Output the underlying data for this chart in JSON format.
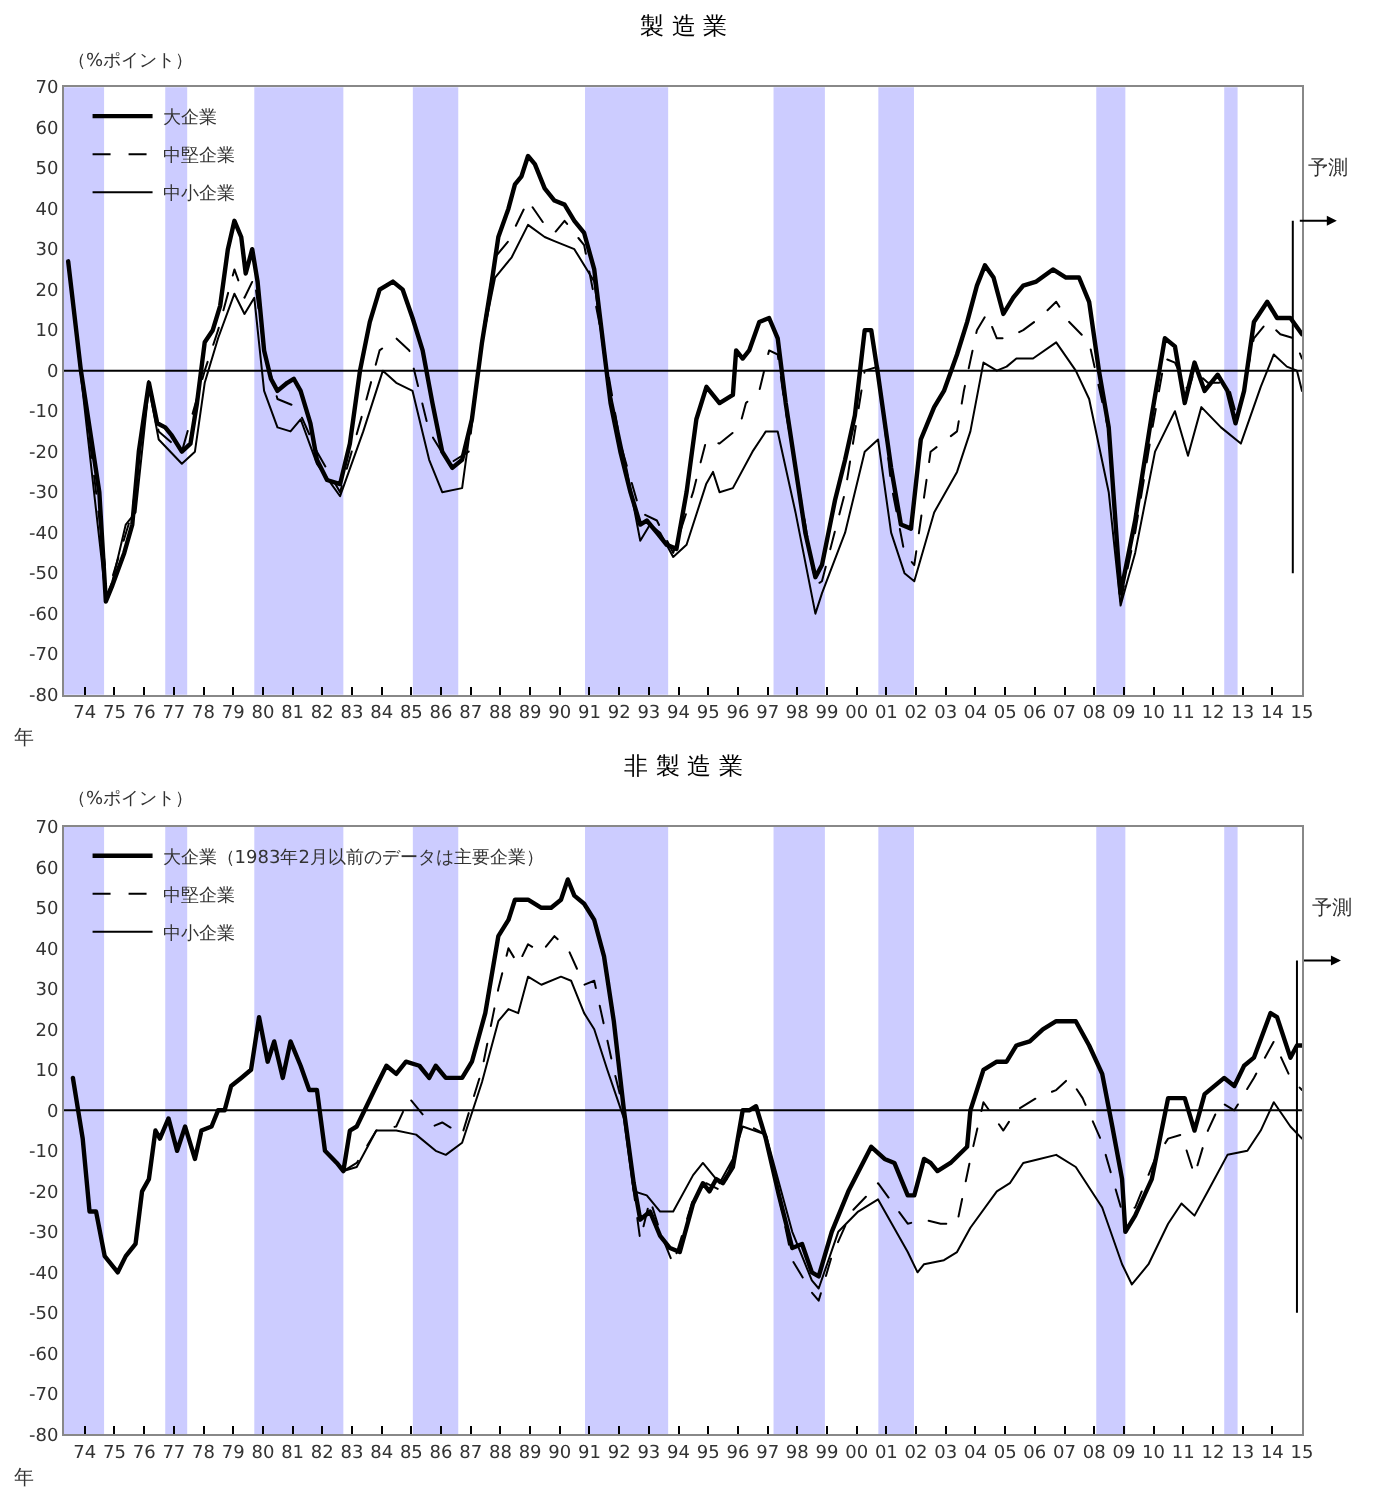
{
  "chart_data": [
    {
      "type": "line",
      "title": "製 造 業",
      "ylabel": "（%ポイント）",
      "xlabel": "年",
      "legend": "top left",
      "grid": false,
      "xlim": [
        1973.3,
        2015.0
      ],
      "ylim": [
        -80,
        70
      ],
      "yticks": [
        -80,
        -70,
        -60,
        -50,
        -40,
        -30,
        -20,
        -10,
        0,
        10,
        20,
        30,
        40,
        50,
        60,
        70
      ],
      "xticks": [
        {
          "value": 1974,
          "label": "74"
        },
        {
          "value": 1975,
          "label": "75"
        },
        {
          "value": 1976,
          "label": "76"
        },
        {
          "value": 1977,
          "label": "77"
        },
        {
          "value": 1978,
          "label": "78"
        },
        {
          "value": 1979,
          "label": "79"
        },
        {
          "value": 1980,
          "label": "80"
        },
        {
          "value": 1981,
          "label": "81"
        },
        {
          "value": 1982,
          "label": "82"
        },
        {
          "value": 1983,
          "label": "83"
        },
        {
          "value": 1984,
          "label": "84"
        },
        {
          "value": 1985,
          "label": "85"
        },
        {
          "value": 1986,
          "label": "86"
        },
        {
          "value": 1987,
          "label": "87"
        },
        {
          "value": 1988,
          "label": "88"
        },
        {
          "value": 1989,
          "label": "89"
        },
        {
          "value": 1990,
          "label": "90"
        },
        {
          "value": 1991,
          "label": "91"
        },
        {
          "value": 1992,
          "label": "92"
        },
        {
          "value": 1993,
          "label": "93"
        },
        {
          "value": 1994,
          "label": "94"
        },
        {
          "value": 1995,
          "label": "95"
        },
        {
          "value": 1996,
          "label": "96"
        },
        {
          "value": 1997,
          "label": "97"
        },
        {
          "value": 1998,
          "label": "98"
        },
        {
          "value": 1999,
          "label": "99"
        },
        {
          "value": 2000,
          "label": "00"
        },
        {
          "value": 2001,
          "label": "01"
        },
        {
          "value": 2002,
          "label": "02"
        },
        {
          "value": 2003,
          "label": "03"
        },
        {
          "value": 2004,
          "label": "04"
        },
        {
          "value": 2005,
          "label": "05"
        },
        {
          "value": 2006,
          "label": "06"
        },
        {
          "value": 2007,
          "label": "07"
        },
        {
          "value": 2008,
          "label": "08"
        },
        {
          "value": 2009,
          "label": "09"
        },
        {
          "value": 2010,
          "label": "10"
        },
        {
          "value": 2011,
          "label": "11"
        },
        {
          "value": 2012,
          "label": "12"
        },
        {
          "value": 2013,
          "label": "13"
        },
        {
          "value": 2014,
          "label": "14"
        },
        {
          "value": 2015,
          "label": "15"
        }
      ],
      "bands": [
        {
          "axis": "x",
          "from": 1973.3,
          "to": 1974.65,
          "color": "#ccccff"
        },
        {
          "axis": "x",
          "from": 1976.71,
          "to": 1977.45,
          "color": "#ccccff"
        },
        {
          "axis": "x",
          "from": 1979.71,
          "to": 1982.71,
          "color": "#ccccff"
        },
        {
          "axis": "x",
          "from": 1985.05,
          "to": 1986.58,
          "color": "#ccccff"
        },
        {
          "axis": "x",
          "from": 1990.85,
          "to": 1993.65,
          "color": "#ccccff"
        },
        {
          "axis": "x",
          "from": 1997.2,
          "to": 1998.93,
          "color": "#ccccff"
        },
        {
          "axis": "x",
          "from": 2000.73,
          "to": 2001.93,
          "color": "#ccccff"
        },
        {
          "axis": "x",
          "from": 2008.07,
          "to": 2009.05,
          "color": "#ccccff"
        },
        {
          "axis": "x",
          "from": 2012.38,
          "to": 2012.83,
          "color": "#ccccff"
        }
      ],
      "ref_lines": [
        {
          "axis": "y",
          "value": 0,
          "color": "#000000"
        },
        {
          "axis": "x",
          "value": 2014.69,
          "label": "予測",
          "color": "#000000"
        }
      ],
      "series": [
        {
          "name": "大企業",
          "color": "#000000",
          "line_style": "solid",
          "x": [
            1973.44,
            1973.87,
            1974.49,
            1974.71,
            1974.93,
            1975.33,
            1975.6,
            1975.82,
            1976.16,
            1976.44,
            1976.71,
            1976.93,
            1977.27,
            1977.56,
            1977.78,
            1978.04,
            1978.31,
            1978.56,
            1978.82,
            1979.04,
            1979.27,
            1979.42,
            1979.64,
            1979.82,
            1980.04,
            1980.27,
            1980.49,
            1980.82,
            1981.04,
            1981.27,
            1981.6,
            1981.82,
            1982.16,
            1982.6,
            1982.93,
            1983.27,
            1983.6,
            1983.93,
            1984.38,
            1984.71,
            1985.04,
            1985.38,
            1985.71,
            1986.04,
            1986.38,
            1986.71,
            1987.04,
            1987.38,
            1987.71,
            1987.93,
            1988.27,
            1988.49,
            1988.71,
            1988.93,
            1989.16,
            1989.49,
            1989.82,
            1990.16,
            1990.49,
            1990.82,
            1991.16,
            1991.49,
            1991.71,
            1992.04,
            1992.38,
            1992.71,
            1992.93,
            1993.27,
            1993.6,
            1993.93,
            1994.27,
            1994.6,
            1994.94,
            1995.38,
            1995.83,
            1995.94,
            1996.16,
            1996.38,
            1996.72,
            1997.05,
            1997.34,
            1997.61,
            1997.94,
            1998.27,
            1998.61,
            1998.83,
            1999.27,
            1999.61,
            1999.94,
            2000.27,
            2000.49,
            2000.72,
            2001.16,
            2001.49,
            2001.83,
            2002.16,
            2002.61,
            2002.94,
            2003.38,
            2003.72,
            2004.05,
            2004.32,
            2004.61,
            2004.94,
            2005.27,
            2005.61,
            2006.05,
            2006.61,
            2007.05,
            2007.49,
            2007.83,
            2008.16,
            2008.49,
            2008.89,
            2009.38,
            2009.94,
            2010.38,
            2010.72,
            2011.05,
            2011.38,
            2011.72,
            2012.16,
            2012.49,
            2012.76,
            2013.05,
            2013.38,
            2013.83,
            2014.16,
            2014.61,
            2015.0
          ],
          "values": [
            27,
            0,
            -30,
            -57,
            -53,
            -45,
            -38,
            -20,
            -3,
            -13,
            -14,
            -16,
            -20,
            -18,
            -8,
            7,
            10,
            16,
            30,
            37,
            33,
            24,
            30,
            22,
            5,
            -2,
            -5,
            -3,
            -2,
            -5,
            -13,
            -22,
            -27,
            -28,
            -18,
            0,
            12,
            20,
            22,
            20,
            13,
            5,
            -8,
            -20,
            -24,
            -22,
            -12,
            7,
            22,
            33,
            40,
            46,
            48,
            53,
            51,
            45,
            42,
            41,
            37,
            34,
            25,
            5,
            -8,
            -20,
            -30,
            -38,
            -37,
            -40,
            -43,
            -44,
            -30,
            -12,
            -4,
            -8,
            -6,
            5,
            3,
            5,
            12,
            13,
            8,
            -8,
            -24,
            -40,
            -51,
            -48,
            -32,
            -22,
            -11,
            10,
            10,
            -1,
            -24,
            -38,
            -39,
            -17,
            -9,
            -5,
            4,
            12,
            21,
            26,
            23,
            14,
            18,
            21,
            22,
            25,
            23,
            23,
            17,
            0,
            -14,
            -55,
            -37,
            -11,
            8,
            6,
            -8,
            2,
            -5,
            -1,
            -5,
            -13,
            -5,
            12,
            17,
            13,
            13,
            9
          ]
        },
        {
          "name": "中堅企業",
          "color": "#000000",
          "line_style": "dashed",
          "x": [
            1973.44,
            1974.71,
            1974.93,
            1975.6,
            1976.16,
            1976.49,
            1977.27,
            1978.04,
            1978.49,
            1979.04,
            1979.38,
            1979.71,
            1980.04,
            1980.49,
            1981.16,
            1981.82,
            1982.6,
            1983.38,
            1983.93,
            1984.49,
            1984.93,
            1985.6,
            1986.27,
            1986.93,
            1987.38,
            1987.82,
            1988.27,
            1988.93,
            1989.49,
            1989.82,
            1990.16,
            1990.82,
            1991.38,
            1992.04,
            1992.71,
            1993.27,
            1993.82,
            1994.49,
            1994.94,
            1995.38,
            1996.05,
            1996.27,
            1996.72,
            1997.05,
            1997.34,
            1997.61,
            1998.27,
            1998.61,
            1998.83,
            1999.61,
            2000.27,
            2000.72,
            2001.16,
            2001.61,
            2001.94,
            2002.49,
            2003.38,
            2003.61,
            2004.05,
            2004.38,
            2004.72,
            2005.05,
            2005.61,
            2006.16,
            2006.72,
            2007.16,
            2007.83,
            2008.49,
            2008.89,
            2009.38,
            2009.94,
            2010.38,
            2010.72,
            2011.16,
            2011.38,
            2011.83,
            2012.49,
            2012.83,
            2013.38,
            2013.83,
            2014.27,
            2014.72,
            2015.0
          ],
          "values": [
            27,
            -50,
            -51,
            -35,
            -2,
            -15,
            -20,
            0,
            10,
            25,
            18,
            23,
            5,
            -7,
            -9,
            -20,
            -30,
            -10,
            5,
            8,
            5,
            -15,
            -23,
            -20,
            8,
            28,
            32,
            42,
            36,
            34,
            37,
            31,
            10,
            -18,
            -35,
            -37,
            -45,
            -30,
            -17,
            -18,
            -14,
            -8,
            -5,
            5,
            4,
            -10,
            -38,
            -53,
            -52,
            -30,
            0,
            1,
            -28,
            -45,
            -48,
            -20,
            -15,
            -5,
            10,
            14,
            8,
            8,
            10,
            13,
            17,
            12,
            7,
            -15,
            -57,
            -40,
            -15,
            3,
            2,
            -5,
            0,
            -3,
            -3,
            -12,
            8,
            12,
            9,
            8,
            3
          ]
        },
        {
          "name": "中小企業",
          "color": "#000000",
          "line_style": "solid",
          "x": [
            1973.44,
            1974.71,
            1974.93,
            1975.38,
            1975.71,
            1976.16,
            1976.49,
            1977.27,
            1977.71,
            1978.04,
            1978.49,
            1979.04,
            1979.38,
            1979.71,
            1980.04,
            1980.49,
            1980.93,
            1981.27,
            1981.82,
            1982.6,
            1983.38,
            1984.04,
            1984.49,
            1985.04,
            1985.6,
            1986.04,
            1986.71,
            1987.38,
            1987.82,
            1988.38,
            1988.93,
            1989.49,
            1989.82,
            1990.49,
            1991.16,
            1991.6,
            1992.27,
            1992.71,
            1993.04,
            1993.38,
            1993.82,
            1994.27,
            1994.93,
            1995.16,
            1995.38,
            1995.83,
            1996.49,
            1996.94,
            1997.34,
            1997.94,
            1998.61,
            1998.83,
            1999.61,
            2000.27,
            2000.72,
            2001.16,
            2001.61,
            2001.94,
            2002.61,
            2003.38,
            2003.83,
            2004.27,
            2004.72,
            2005.05,
            2005.38,
            2005.94,
            2006.72,
            2007.38,
            2007.83,
            2008.49,
            2008.89,
            2009.38,
            2010.05,
            2010.72,
            2011.16,
            2011.61,
            2012.27,
            2012.94,
            2013.61,
            2014.05,
            2014.49,
            2014.83,
            2015.0
          ],
          "values": [
            27,
            -56,
            -52,
            -38,
            -35,
            -4,
            -17,
            -23,
            -20,
            -3,
            8,
            19,
            14,
            18,
            -5,
            -14,
            -15,
            -12,
            -23,
            -31,
            -15,
            0,
            -3,
            -5,
            -22,
            -30,
            -29,
            7,
            23,
            28,
            36,
            33,
            32,
            30,
            22,
            -2,
            -25,
            -42,
            -38,
            -40,
            -46,
            -43,
            -28,
            -25,
            -30,
            -29,
            -20,
            -15,
            -15,
            -35,
            -60,
            -55,
            -40,
            -20,
            -17,
            -40,
            -50,
            -52,
            -35,
            -25,
            -15,
            2,
            0,
            1,
            3,
            3,
            7,
            0,
            -7,
            -30,
            -58,
            -45,
            -20,
            -10,
            -21,
            -9,
            -14,
            -18,
            -4,
            4,
            1,
            0,
            -5
          ]
        }
      ]
    },
    {
      "type": "line",
      "title": "非 製 造 業",
      "ylabel": "（%ポイント）",
      "xlabel": "年",
      "legend": "top left",
      "grid": false,
      "xlim": [
        1973.3,
        2015.0
      ],
      "ylim": [
        -80,
        70
      ],
      "yticks": [
        -80,
        -70,
        -60,
        -50,
        -40,
        -30,
        -20,
        -10,
        0,
        10,
        20,
        30,
        40,
        50,
        60,
        70
      ],
      "xticks": [
        {
          "value": 1974,
          "label": "74"
        },
        {
          "value": 1975,
          "label": "75"
        },
        {
          "value": 1976,
          "label": "76"
        },
        {
          "value": 1977,
          "label": "77"
        },
        {
          "value": 1978,
          "label": "78"
        },
        {
          "value": 1979,
          "label": "79"
        },
        {
          "value": 1980,
          "label": "80"
        },
        {
          "value": 1981,
          "label": "81"
        },
        {
          "value": 1982,
          "label": "82"
        },
        {
          "value": 1983,
          "label": "83"
        },
        {
          "value": 1984,
          "label": "84"
        },
        {
          "value": 1985,
          "label": "85"
        },
        {
          "value": 1986,
          "label": "86"
        },
        {
          "value": 1987,
          "label": "87"
        },
        {
          "value": 1988,
          "label": "88"
        },
        {
          "value": 1989,
          "label": "89"
        },
        {
          "value": 1990,
          "label": "90"
        },
        {
          "value": 1991,
          "label": "91"
        },
        {
          "value": 1992,
          "label": "92"
        },
        {
          "value": 1993,
          "label": "93"
        },
        {
          "value": 1994,
          "label": "94"
        },
        {
          "value": 1995,
          "label": "95"
        },
        {
          "value": 1996,
          "label": "96"
        },
        {
          "value": 1997,
          "label": "97"
        },
        {
          "value": 1998,
          "label": "98"
        },
        {
          "value": 1999,
          "label": "99"
        },
        {
          "value": 2000,
          "label": "00"
        },
        {
          "value": 2001,
          "label": "01"
        },
        {
          "value": 2002,
          "label": "02"
        },
        {
          "value": 2003,
          "label": "03"
        },
        {
          "value": 2004,
          "label": "04"
        },
        {
          "value": 2005,
          "label": "05"
        },
        {
          "value": 2006,
          "label": "06"
        },
        {
          "value": 2007,
          "label": "07"
        },
        {
          "value": 2008,
          "label": "08"
        },
        {
          "value": 2009,
          "label": "09"
        },
        {
          "value": 2010,
          "label": "10"
        },
        {
          "value": 2011,
          "label": "11"
        },
        {
          "value": 2012,
          "label": "12"
        },
        {
          "value": 2013,
          "label": "13"
        },
        {
          "value": 2014,
          "label": "14"
        },
        {
          "value": 2015,
          "label": "15"
        }
      ],
      "bands": [
        {
          "axis": "x",
          "from": 1973.3,
          "to": 1974.65,
          "color": "#ccccff"
        },
        {
          "axis": "x",
          "from": 1976.71,
          "to": 1977.45,
          "color": "#ccccff"
        },
        {
          "axis": "x",
          "from": 1979.71,
          "to": 1982.71,
          "color": "#ccccff"
        },
        {
          "axis": "x",
          "from": 1985.05,
          "to": 1986.58,
          "color": "#ccccff"
        },
        {
          "axis": "x",
          "from": 1990.85,
          "to": 1993.65,
          "color": "#ccccff"
        },
        {
          "axis": "x",
          "from": 1997.2,
          "to": 1998.93,
          "color": "#ccccff"
        },
        {
          "axis": "x",
          "from": 2000.73,
          "to": 2001.93,
          "color": "#ccccff"
        },
        {
          "axis": "x",
          "from": 2008.07,
          "to": 2009.05,
          "color": "#ccccff"
        },
        {
          "axis": "x",
          "from": 2012.38,
          "to": 2012.83,
          "color": "#ccccff"
        }
      ],
      "ref_lines": [
        {
          "axis": "y",
          "value": 0,
          "color": "#000000"
        },
        {
          "axis": "x",
          "value": 2014.83,
          "label": "予測",
          "color": "#000000"
        }
      ],
      "series": [
        {
          "name": "大企業（1983年2月以前のデータは主要企業）",
          "color": "#000000",
          "line_style": "solid",
          "x": [
            1973.6,
            1973.93,
            1974.16,
            1974.38,
            1974.67,
            1975.11,
            1975.38,
            1975.71,
            1975.93,
            1976.16,
            1976.38,
            1976.53,
            1976.82,
            1977.11,
            1977.38,
            1977.71,
            1977.93,
            1978.27,
            1978.49,
            1978.71,
            1978.93,
            1979.27,
            1979.6,
            1979.87,
            1980.16,
            1980.38,
            1980.67,
            1980.93,
            1981.27,
            1981.56,
            1981.82,
            1982.09,
            1982.49,
            1982.71,
            1982.93,
            1983.16,
            1983.49,
            1983.82,
            1984.16,
            1984.49,
            1984.82,
            1985.27,
            1985.6,
            1985.82,
            1986.16,
            1986.71,
            1987.04,
            1987.49,
            1987.93,
            1988.27,
            1988.49,
            1988.93,
            1989.38,
            1989.71,
            1990.04,
            1990.27,
            1990.49,
            1990.82,
            1991.16,
            1991.49,
            1991.82,
            1992.16,
            1992.49,
            1992.71,
            1993.04,
            1993.38,
            1993.71,
            1994.04,
            1994.49,
            1994.82,
            1995.04,
            1995.27,
            1995.49,
            1995.83,
            1996.16,
            1996.38,
            1996.61,
            1996.94,
            1997.38,
            1997.83,
            1998.16,
            1998.49,
            1998.72,
            1999.16,
            1999.72,
            2000.49,
            2000.94,
            2001.27,
            2001.72,
            2001.94,
            2002.27,
            2002.49,
            2002.72,
            2003.16,
            2003.72,
            2003.83,
            2004.27,
            2004.72,
            2005.05,
            2005.38,
            2005.83,
            2006.27,
            2006.72,
            2007.38,
            2007.83,
            2008.27,
            2008.61,
            2008.94,
            2009.05,
            2009.38,
            2009.94,
            2010.49,
            2011.05,
            2011.38,
            2011.72,
            2012.38,
            2012.72,
            2013.05,
            2013.38,
            2013.94,
            2014.16,
            2014.61,
            2014.83,
            2015.0
          ],
          "values": [
            8,
            -7,
            -25,
            -25,
            -36,
            -40,
            -36,
            -33,
            -20,
            -17,
            -5,
            -7,
            -2,
            -10,
            -4,
            -12,
            -5,
            -4,
            0,
            0,
            6,
            8,
            10,
            23,
            12,
            17,
            8,
            17,
            11,
            5,
            5,
            -10,
            -13,
            -15,
            -5,
            -4,
            1,
            6,
            11,
            9,
            12,
            11,
            8,
            11,
            8,
            8,
            12,
            24,
            43,
            47,
            52,
            52,
            50,
            50,
            52,
            57,
            53,
            51,
            47,
            38,
            22,
            0,
            -18,
            -27,
            -25,
            -31,
            -34,
            -35,
            -23,
            -18,
            -20,
            -17,
            -18,
            -14,
            0,
            0,
            1,
            -7,
            -21,
            -34,
            -33,
            -40,
            -41,
            -30,
            -20,
            -9,
            -12,
            -13,
            -21,
            -21,
            -12,
            -13,
            -15,
            -13,
            -9,
            0,
            10,
            12,
            12,
            16,
            17,
            20,
            22,
            22,
            16,
            9,
            -4,
            -17,
            -30,
            -26,
            -17,
            3,
            3,
            -5,
            4,
            8,
            6,
            11,
            13,
            24,
            23,
            13,
            16,
            16
          ]
        },
        {
          "name": "中堅企業",
          "color": "#000000",
          "line_style": "dashed",
          "x": [
            1982.71,
            1983.16,
            1983.82,
            1984.49,
            1984.93,
            1985.38,
            1985.71,
            1986.04,
            1986.71,
            1987.38,
            1987.93,
            1988.27,
            1988.6,
            1988.93,
            1989.38,
            1989.82,
            1990.27,
            1990.82,
            1991.16,
            1991.82,
            1992.16,
            1992.49,
            1992.71,
            1993.04,
            1993.38,
            1993.82,
            1994.49,
            1994.93,
            1995.49,
            1995.83,
            1996.16,
            1996.94,
            1997.83,
            1998.49,
            1998.72,
            1999.16,
            1999.83,
            2000.49,
            2000.72,
            2001.72,
            2002.27,
            2002.83,
            2003.38,
            2003.83,
            2004.27,
            2004.94,
            2005.38,
            2006.05,
            2006.72,
            2007.16,
            2007.61,
            2008.27,
            2008.94,
            2009.38,
            2010.05,
            2010.49,
            2010.94,
            2011.38,
            2011.83,
            2012.27,
            2012.72,
            2013.38,
            2014.05,
            2014.61,
            2015.0
          ],
          "values": [
            -15,
            -13,
            -5,
            -4,
            3,
            -1,
            -4,
            -3,
            -6,
            10,
            30,
            40,
            36,
            41,
            39,
            43,
            40,
            31,
            32,
            10,
            0,
            -20,
            -32,
            -22,
            -30,
            -38,
            -22,
            -18,
            -20,
            -12,
            -3,
            -6,
            -37,
            -45,
            -47,
            -36,
            -25,
            -20,
            -18,
            -28,
            -27,
            -28,
            -28,
            -12,
            2,
            -5,
            0,
            3,
            5,
            8,
            3,
            -8,
            -25,
            -24,
            -12,
            -7,
            -6,
            -16,
            -5,
            2,
            0,
            8,
            17,
            8,
            5
          ]
        },
        {
          "name": "中小企業",
          "color": "#000000",
          "line_style": "solid",
          "x": [
            1982.71,
            1983.16,
            1983.82,
            1984.49,
            1985.16,
            1985.82,
            1986.16,
            1986.71,
            1987.38,
            1987.93,
            1988.27,
            1988.6,
            1988.93,
            1989.38,
            1990.04,
            1990.38,
            1990.82,
            1991.16,
            1991.6,
            1992.16,
            1992.49,
            1992.93,
            1993.38,
            1993.82,
            1994.49,
            1994.82,
            1995.38,
            1995.83,
            1996.16,
            1996.94,
            1997.83,
            1998.49,
            1998.72,
            1999.38,
            2000.05,
            2000.72,
            2001.72,
            2002.05,
            2002.27,
            2002.94,
            2003.38,
            2003.83,
            2004.72,
            2005.16,
            2005.61,
            2006.16,
            2006.72,
            2007.38,
            2008.27,
            2008.94,
            2009.27,
            2009.83,
            2010.49,
            2010.94,
            2011.38,
            2011.83,
            2012.49,
            2013.16,
            2013.61,
            2014.05,
            2014.61,
            2015.0
          ],
          "values": [
            -15,
            -14,
            -5,
            -5,
            -6,
            -10,
            -11,
            -8,
            7,
            22,
            25,
            24,
            33,
            31,
            33,
            32,
            24,
            20,
            10,
            -2,
            -20,
            -21,
            -25,
            -25,
            -16,
            -13,
            -18,
            -12,
            -4,
            -6,
            -30,
            -42,
            -44,
            -30,
            -25,
            -22,
            -35,
            -40,
            -38,
            -37,
            -35,
            -29,
            -20,
            -18,
            -13,
            -12,
            -11,
            -14,
            -24,
            -38,
            -43,
            -38,
            -28,
            -23,
            -26,
            -20,
            -11,
            -10,
            -5,
            2,
            -4,
            -7
          ]
        }
      ]
    }
  ]
}
